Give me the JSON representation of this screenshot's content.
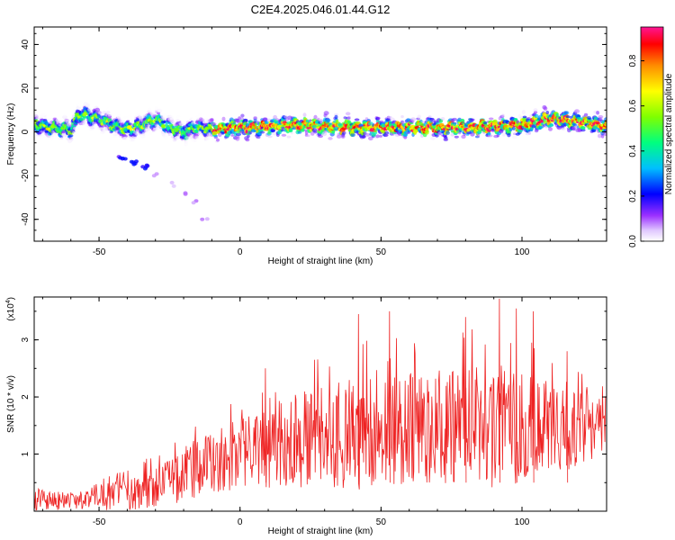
{
  "chart_data": [
    {
      "type": "heatmap",
      "title": "C2E4.2025.046.01.44.G12",
      "xlabel": "Height of straight line (km)",
      "ylabel": "Frequency (Hz)",
      "xlim": [
        -73,
        130
      ],
      "ylim": [
        -50,
        48
      ],
      "x_ticks": [
        -50,
        0,
        50,
        100
      ],
      "y_ticks": [
        40,
        20,
        0,
        -20,
        -40
      ],
      "colorbar": {
        "label": "Normalized spectral amplitude",
        "range": [
          0,
          0.95
        ],
        "ticks": [
          "0.0",
          "0.2",
          "0.4",
          "0.6",
          "0.8"
        ],
        "colors": [
          "#ffffff",
          "#d8b4ff",
          "#8a2be2",
          "#0000ff",
          "#00c8ff",
          "#00ff80",
          "#7fff00",
          "#ffff00",
          "#ff8c00",
          "#ff0000",
          "#ff1493"
        ]
      },
      "ridge": {
        "description_points_x": [
          -73,
          -60,
          -57,
          -50,
          -45,
          -40,
          -35,
          -30,
          -25,
          -20,
          -15,
          -10,
          0,
          20,
          40,
          60,
          80,
          100,
          110,
          130
        ],
        "frequency": [
          3,
          1,
          8,
          6,
          3,
          1,
          3,
          6,
          2,
          0,
          2,
          1,
          2,
          3,
          2,
          2,
          2,
          3,
          6,
          3
        ]
      },
      "tail": {
        "x": [
          -42,
          -38,
          -34,
          -30,
          -25,
          -20,
          -17,
          -12
        ],
        "y": [
          -12,
          -14,
          -16,
          -20,
          -24,
          -28,
          -32,
          -40
        ]
      }
    },
    {
      "type": "line",
      "xlabel": "Height of straight line (km)",
      "ylabel": "SNR (10 * v/v)",
      "multiplier": "(x10",
      "multiplier_exp": "4",
      "multiplier_close": ")",
      "xlim": [
        -73,
        130
      ],
      "ylim": [
        0,
        3.75
      ],
      "x_ticks": [
        -50,
        0,
        50,
        100
      ],
      "y_ticks": [
        1,
        2,
        3
      ],
      "color": "#ee2222",
      "envelope": {
        "x": [
          -73,
          -60,
          -50,
          -40,
          -30,
          -20,
          -10,
          0,
          10,
          20,
          30,
          40,
          50,
          60,
          70,
          80,
          90,
          100,
          110,
          120,
          130
        ],
        "mean": [
          0.2,
          0.18,
          0.2,
          0.3,
          0.4,
          0.6,
          0.85,
          1.0,
          1.1,
          1.2,
          1.3,
          1.35,
          1.4,
          1.4,
          1.45,
          1.5,
          1.5,
          1.5,
          1.4,
          1.5,
          1.6
        ],
        "spread": [
          0.2,
          0.15,
          0.2,
          0.3,
          0.35,
          0.45,
          0.55,
          0.6,
          0.7,
          0.8,
          0.9,
          1.0,
          1.0,
          1.0,
          1.0,
          1.0,
          1.1,
          1.0,
          0.8,
          0.7,
          0.6
        ]
      },
      "peaks": [
        {
          "x": 9,
          "y": 2.5
        },
        {
          "x": 42,
          "y": 3.45
        },
        {
          "x": 53,
          "y": 3.5
        },
        {
          "x": 80,
          "y": 3.4
        },
        {
          "x": 92,
          "y": 3.72
        },
        {
          "x": 98,
          "y": 3.55
        },
        {
          "x": 104,
          "y": 3.5
        },
        {
          "x": 116,
          "y": 2.8
        }
      ]
    }
  ]
}
